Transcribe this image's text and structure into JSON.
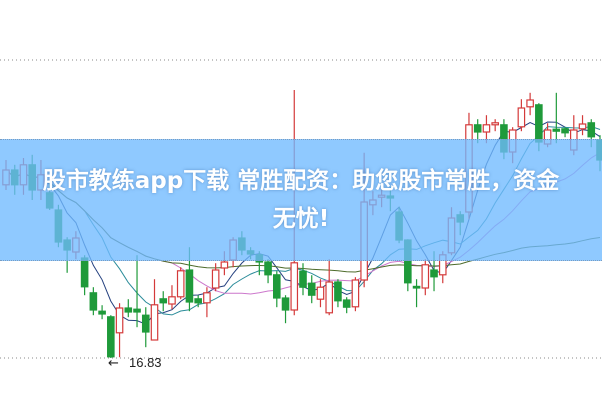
{
  "chart_data": {
    "type": "candlestick",
    "title": "",
    "xlabel": "",
    "ylabel": "",
    "grid": true,
    "annotations": [
      {
        "text": "16.83",
        "arrow": "left-arrow"
      }
    ],
    "moving_averages": [
      "MA5",
      "MA10",
      "MA20",
      "MA60"
    ],
    "colors": {
      "up": "#d43a3a",
      "down": "#1f9a3a",
      "ma5": "#24407f",
      "ma10": "#2b8c9a",
      "ma20": "#cc77cc",
      "ma60": "#4d6b2a",
      "grid": "#8a8a8a"
    },
    "candles": [
      [
        21.16,
        21.53,
        21.78,
        21.03
      ],
      [
        21.53,
        21.16,
        21.66,
        20.91
      ],
      [
        21.16,
        21.66,
        21.83,
        20.91
      ],
      [
        21.66,
        21.03,
        21.91,
        20.78
      ],
      [
        21.03,
        21.41,
        21.78,
        20.78
      ],
      [
        20.96,
        20.58,
        21.23,
        20.53
      ],
      [
        20.53,
        19.73,
        20.66,
        19.6
      ],
      [
        19.78,
        19.53,
        19.85,
        18.96
      ],
      [
        19.48,
        19.83,
        20.0,
        19.3
      ],
      [
        19.33,
        18.61,
        19.4,
        18.4
      ],
      [
        18.46,
        18.03,
        18.6,
        17.9
      ],
      [
        18.0,
        17.93,
        18.15,
        17.8
      ],
      [
        17.86,
        16.86,
        17.9,
        16.83
      ],
      [
        17.46,
        18.08,
        18.2,
        16.85
      ],
      [
        18.08,
        17.98,
        18.3,
        17.85
      ],
      [
        18.05,
        17.98,
        19.4,
        17.6
      ],
      [
        17.9,
        17.48,
        18.1,
        17.1
      ],
      [
        17.28,
        18.16,
        18.8,
        17.28
      ],
      [
        18.31,
        18.21,
        18.5,
        18.0
      ],
      [
        18.18,
        18.36,
        18.65,
        18.05
      ],
      [
        18.36,
        19.01,
        19.1,
        18.3
      ],
      [
        19.03,
        18.23,
        19.6,
        18.0
      ],
      [
        18.31,
        18.21,
        18.4,
        18.1
      ],
      [
        18.21,
        18.46,
        18.6,
        17.85
      ],
      [
        18.58,
        19.03,
        19.2,
        18.5
      ],
      [
        19.08,
        19.23,
        19.5,
        18.9
      ],
      [
        19.28,
        19.78,
        19.85,
        19.1
      ],
      [
        19.83,
        19.53,
        20.0,
        19.4
      ],
      [
        19.51,
        19.43,
        19.6,
        19.3
      ],
      [
        19.41,
        19.23,
        19.5,
        18.9
      ],
      [
        19.23,
        18.91,
        19.3,
        18.7
      ],
      [
        18.91,
        18.33,
        19.0,
        18.1
      ],
      [
        18.33,
        18.03,
        18.4,
        17.7
      ],
      [
        18.03,
        19.21,
        23.53,
        17.9
      ],
      [
        19.0,
        18.6,
        19.2,
        18.4
      ],
      [
        18.7,
        18.4,
        18.9,
        18.2
      ],
      [
        18.3,
        18.6,
        18.8,
        18.1
      ],
      [
        17.96,
        18.73,
        19.3,
        17.9
      ],
      [
        18.73,
        18.26,
        18.8,
        18.1
      ],
      [
        18.28,
        18.1,
        18.35,
        17.95
      ],
      [
        18.11,
        18.78,
        18.85,
        18.0
      ],
      [
        18.78,
        20.73,
        21.96,
        18.6
      ],
      [
        20.66,
        20.78,
        21.0,
        20.4
      ],
      [
        20.85,
        20.9,
        21.2,
        20.6
      ],
      [
        20.88,
        20.83,
        21.1,
        20.5
      ],
      [
        20.48,
        19.78,
        20.6,
        19.7
      ],
      [
        19.78,
        18.71,
        19.8,
        18.5
      ],
      [
        18.62,
        18.58,
        18.8,
        18.1
      ],
      [
        18.58,
        19.16,
        19.3,
        18.4
      ],
      [
        19.03,
        18.86,
        19.5,
        18.5
      ],
      [
        18.91,
        19.41,
        19.5,
        18.7
      ],
      [
        19.46,
        20.33,
        20.6,
        19.4
      ],
      [
        20.41,
        20.23,
        20.5,
        19.9
      ],
      [
        20.48,
        22.66,
        22.96,
        20.3
      ],
      [
        22.66,
        22.48,
        22.8,
        22.2
      ],
      [
        22.48,
        22.66,
        22.9,
        22.2
      ],
      [
        22.66,
        22.71,
        22.8,
        22.5
      ],
      [
        22.66,
        21.98,
        22.8,
        21.8
      ],
      [
        21.98,
        22.53,
        22.6,
        21.7
      ],
      [
        22.61,
        23.08,
        23.3,
        22.5
      ],
      [
        23.11,
        23.28,
        23.46,
        22.9
      ],
      [
        23.16,
        22.23,
        23.2,
        22.0
      ],
      [
        22.18,
        22.53,
        22.7,
        22.1
      ],
      [
        22.55,
        22.5,
        23.46,
        22.2
      ],
      [
        22.56,
        22.46,
        22.6,
        22.35
      ],
      [
        22.03,
        22.53,
        22.9,
        21.9
      ],
      [
        22.56,
        22.68,
        22.9,
        22.4
      ],
      [
        22.71,
        22.36,
        22.8,
        22.1
      ],
      [
        22.28,
        21.78,
        22.4,
        21.5
      ]
    ]
  },
  "banner": {
    "line1": "股市教练app下载 常胜配资：助您股市常胜，资金",
    "line2": "无忧!"
  }
}
